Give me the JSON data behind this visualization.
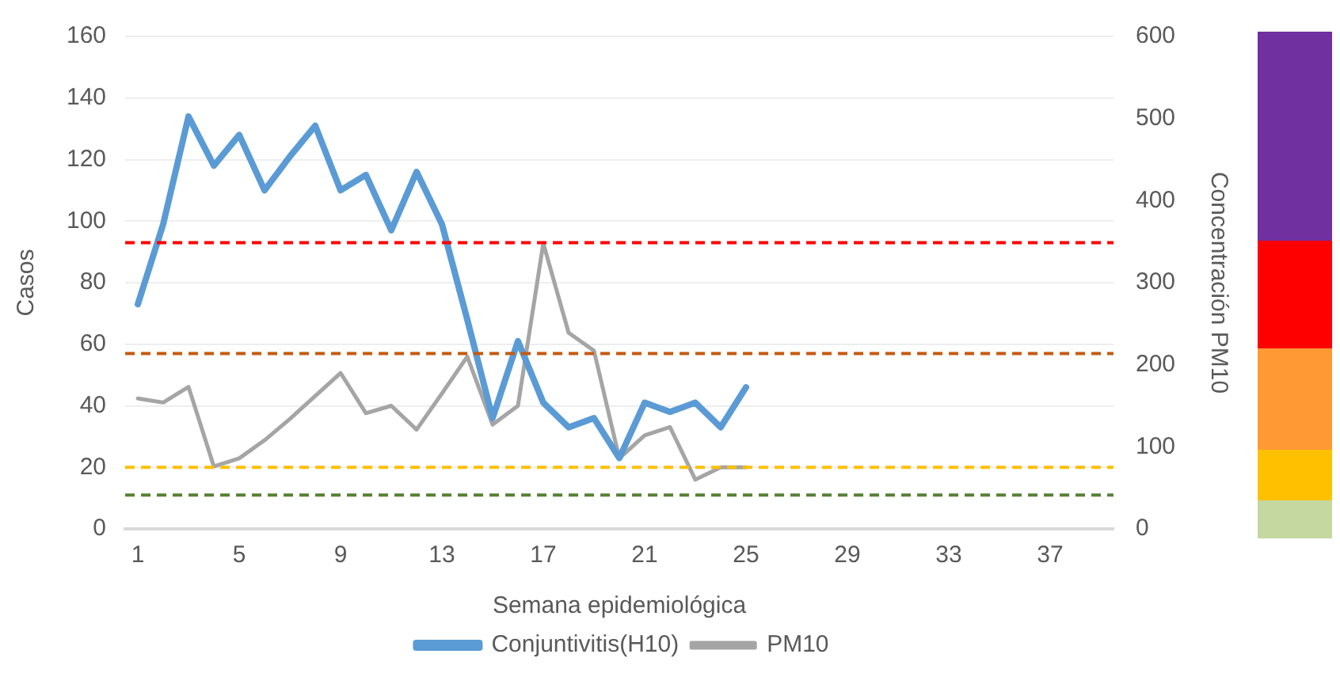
{
  "chart_data": {
    "type": "line",
    "xlabel": "Semana epidemiológica",
    "ylabel": "Casos",
    "y2label": "Concentración PM10",
    "categories": [
      "1",
      null,
      null,
      null,
      "5",
      null,
      null,
      null,
      "9",
      null,
      null,
      null,
      "13",
      null,
      null,
      null,
      "17",
      null,
      null,
      null,
      "21",
      null,
      null,
      null,
      "25",
      null,
      null,
      null,
      "29",
      null,
      null,
      null,
      "33",
      null,
      null,
      null,
      "37",
      null,
      null
    ],
    "series": [
      {
        "name": "Conjuntivitis(H10)",
        "color": "#5b9bd5",
        "values": [
          73,
          99,
          134,
          118,
          128,
          110,
          121,
          131,
          110,
          115,
          97,
          116,
          99,
          68,
          36,
          61,
          41,
          33,
          36,
          23,
          41,
          38,
          41,
          33,
          46,
          null,
          null,
          null,
          null,
          null,
          null,
          null,
          null,
          null,
          null,
          null,
          null,
          null,
          null
        ]
      },
      {
        "name": "PM10",
        "color": "#a5a5a5",
        "axis": "y2",
        "values": [
          159,
          154,
          173,
          76,
          86,
          108,
          134,
          162,
          190,
          141,
          150,
          121,
          165,
          210,
          127,
          150,
          348,
          239,
          217,
          86,
          114,
          124,
          60,
          75,
          75,
          null,
          null,
          null,
          null,
          null,
          null,
          null,
          null,
          null,
          null,
          null,
          null,
          null,
          null
        ]
      }
    ],
    "ylim": [
      0,
      160
    ],
    "yticks": [
      0,
      20,
      40,
      60,
      80,
      100,
      120,
      140,
      160
    ],
    "y2lim": [
      0,
      600
    ],
    "y2ticks": [
      0,
      100,
      200,
      300,
      400,
      500,
      600
    ],
    "ref_lines": [
      {
        "axis": "y",
        "value": 93,
        "color": "#ff0000",
        "line_style": "dashed"
      },
      {
        "axis": "y",
        "value": 57,
        "color": "#c55a11",
        "line_style": "dashed"
      },
      {
        "axis": "y",
        "value": 20,
        "color": "#ffc000",
        "line_style": "dashed"
      },
      {
        "axis": "y",
        "value": 11,
        "color": "#548235",
        "line_style": "dashed"
      }
    ],
    "grid": "y",
    "legend": "bottom",
    "marker": "none",
    "line_style": "solid"
  }
}
